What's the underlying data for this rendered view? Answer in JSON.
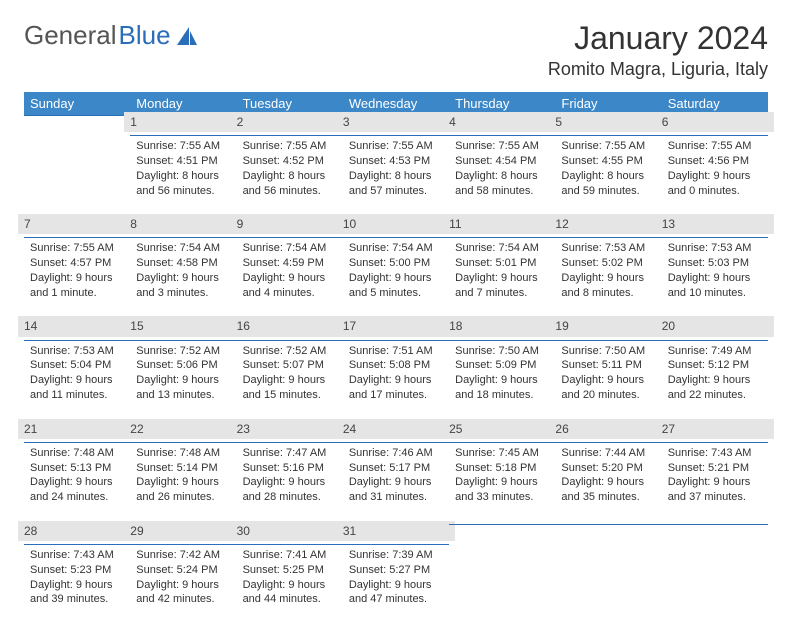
{
  "brand": {
    "part1": "General",
    "part2": "Blue"
  },
  "title": "January 2024",
  "subtitle": "Romito Magra, Liguria, Italy",
  "accent_color": "#3b87c8",
  "rule_color": "#2a6db8",
  "daynum_bg": "#e5e5e5",
  "text_color": "#333333",
  "background": "#ffffff",
  "font_family": "Arial",
  "dayHeaders": [
    "Sunday",
    "Monday",
    "Tuesday",
    "Wednesday",
    "Thursday",
    "Friday",
    "Saturday"
  ],
  "weeks": [
    [
      null,
      {
        "n": "1",
        "sr": "7:55 AM",
        "ss": "4:51 PM",
        "dl": "8 hours and 56 minutes."
      },
      {
        "n": "2",
        "sr": "7:55 AM",
        "ss": "4:52 PM",
        "dl": "8 hours and 56 minutes."
      },
      {
        "n": "3",
        "sr": "7:55 AM",
        "ss": "4:53 PM",
        "dl": "8 hours and 57 minutes."
      },
      {
        "n": "4",
        "sr": "7:55 AM",
        "ss": "4:54 PM",
        "dl": "8 hours and 58 minutes."
      },
      {
        "n": "5",
        "sr": "7:55 AM",
        "ss": "4:55 PM",
        "dl": "8 hours and 59 minutes."
      },
      {
        "n": "6",
        "sr": "7:55 AM",
        "ss": "4:56 PM",
        "dl": "9 hours and 0 minutes."
      }
    ],
    [
      {
        "n": "7",
        "sr": "7:55 AM",
        "ss": "4:57 PM",
        "dl": "9 hours and 1 minute."
      },
      {
        "n": "8",
        "sr": "7:54 AM",
        "ss": "4:58 PM",
        "dl": "9 hours and 3 minutes."
      },
      {
        "n": "9",
        "sr": "7:54 AM",
        "ss": "4:59 PM",
        "dl": "9 hours and 4 minutes."
      },
      {
        "n": "10",
        "sr": "7:54 AM",
        "ss": "5:00 PM",
        "dl": "9 hours and 5 minutes."
      },
      {
        "n": "11",
        "sr": "7:54 AM",
        "ss": "5:01 PM",
        "dl": "9 hours and 7 minutes."
      },
      {
        "n": "12",
        "sr": "7:53 AM",
        "ss": "5:02 PM",
        "dl": "9 hours and 8 minutes."
      },
      {
        "n": "13",
        "sr": "7:53 AM",
        "ss": "5:03 PM",
        "dl": "9 hours and 10 minutes."
      }
    ],
    [
      {
        "n": "14",
        "sr": "7:53 AM",
        "ss": "5:04 PM",
        "dl": "9 hours and 11 minutes."
      },
      {
        "n": "15",
        "sr": "7:52 AM",
        "ss": "5:06 PM",
        "dl": "9 hours and 13 minutes."
      },
      {
        "n": "16",
        "sr": "7:52 AM",
        "ss": "5:07 PM",
        "dl": "9 hours and 15 minutes."
      },
      {
        "n": "17",
        "sr": "7:51 AM",
        "ss": "5:08 PM",
        "dl": "9 hours and 17 minutes."
      },
      {
        "n": "18",
        "sr": "7:50 AM",
        "ss": "5:09 PM",
        "dl": "9 hours and 18 minutes."
      },
      {
        "n": "19",
        "sr": "7:50 AM",
        "ss": "5:11 PM",
        "dl": "9 hours and 20 minutes."
      },
      {
        "n": "20",
        "sr": "7:49 AM",
        "ss": "5:12 PM",
        "dl": "9 hours and 22 minutes."
      }
    ],
    [
      {
        "n": "21",
        "sr": "7:48 AM",
        "ss": "5:13 PM",
        "dl": "9 hours and 24 minutes."
      },
      {
        "n": "22",
        "sr": "7:48 AM",
        "ss": "5:14 PM",
        "dl": "9 hours and 26 minutes."
      },
      {
        "n": "23",
        "sr": "7:47 AM",
        "ss": "5:16 PM",
        "dl": "9 hours and 28 minutes."
      },
      {
        "n": "24",
        "sr": "7:46 AM",
        "ss": "5:17 PM",
        "dl": "9 hours and 31 minutes."
      },
      {
        "n": "25",
        "sr": "7:45 AM",
        "ss": "5:18 PM",
        "dl": "9 hours and 33 minutes."
      },
      {
        "n": "26",
        "sr": "7:44 AM",
        "ss": "5:20 PM",
        "dl": "9 hours and 35 minutes."
      },
      {
        "n": "27",
        "sr": "7:43 AM",
        "ss": "5:21 PM",
        "dl": "9 hours and 37 minutes."
      }
    ],
    [
      {
        "n": "28",
        "sr": "7:43 AM",
        "ss": "5:23 PM",
        "dl": "9 hours and 39 minutes."
      },
      {
        "n": "29",
        "sr": "7:42 AM",
        "ss": "5:24 PM",
        "dl": "9 hours and 42 minutes."
      },
      {
        "n": "30",
        "sr": "7:41 AM",
        "ss": "5:25 PM",
        "dl": "9 hours and 44 minutes."
      },
      {
        "n": "31",
        "sr": "7:39 AM",
        "ss": "5:27 PM",
        "dl": "9 hours and 47 minutes."
      },
      null,
      null,
      null
    ]
  ],
  "labels": {
    "sunrise": "Sunrise:",
    "sunset": "Sunset:",
    "daylight": "Daylight:"
  }
}
